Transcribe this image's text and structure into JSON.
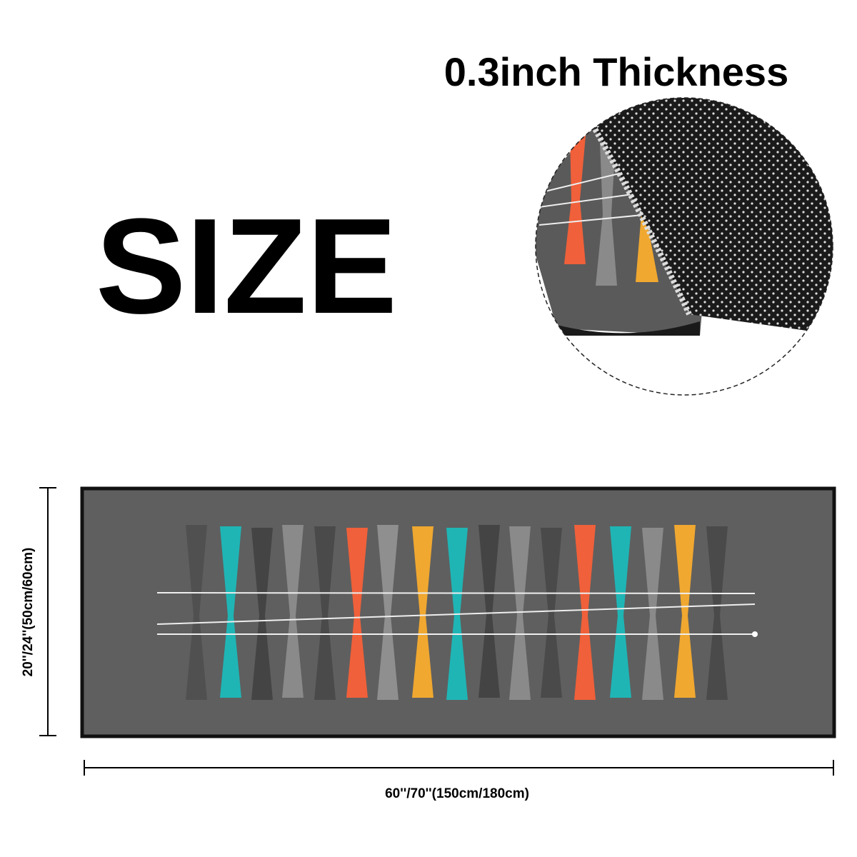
{
  "title": "SIZE",
  "thickness": "0.3inch Thickness",
  "height_label": "20''/24''(50cm/60cm)",
  "width_label": "60''/70''(150cm/180cm)"
}
